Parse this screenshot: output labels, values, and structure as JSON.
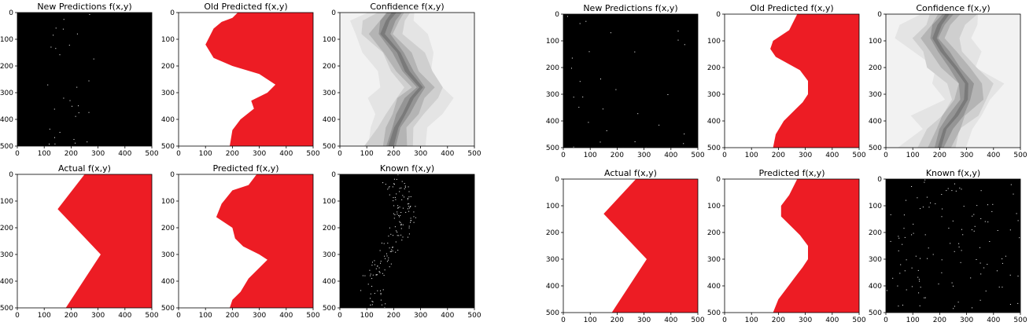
{
  "colors": {
    "red": "#ed1c24",
    "black": "#000000",
    "white": "#ffffff",
    "axis": "#000000"
  },
  "chart_data": [
    {
      "figure": "left",
      "panels": [
        {
          "type": "heatmap",
          "title": "New Predictions f(x,y)",
          "content": "sparse_black",
          "xlim": [
            0,
            500
          ],
          "ylim": [
            500,
            0
          ],
          "xticks": [
            0,
            100,
            200,
            300,
            400,
            500
          ],
          "yticks": [
            0,
            100,
            200,
            300,
            400,
            500
          ]
        },
        {
          "type": "heatmap",
          "title": "Old Predicted f(x,y)",
          "content": "boundary",
          "xlim": [
            0,
            500
          ],
          "ylim": [
            500,
            0
          ],
          "xticks": [
            0,
            100,
            200,
            300,
            400,
            500
          ],
          "yticks": [
            0,
            100,
            200,
            300,
            400,
            500
          ],
          "boundary": [
            [
              220,
              0
            ],
            [
              200,
              20
            ],
            [
              160,
              35
            ],
            [
              130,
              60
            ],
            [
              100,
              120
            ],
            [
              130,
              170
            ],
            [
              200,
              200
            ],
            [
              300,
              230
            ],
            [
              360,
              270
            ],
            [
              330,
              300
            ],
            [
              270,
              330
            ],
            [
              280,
              360
            ],
            [
              230,
              400
            ],
            [
              200,
              440
            ],
            [
              190,
              500
            ]
          ]
        },
        {
          "type": "heatmap",
          "title": "Confidence f(x,y)",
          "content": "confidence",
          "xlim": [
            0,
            500
          ],
          "ylim": [
            500,
            0
          ],
          "xticks": [
            0,
            100,
            200,
            300,
            400,
            500
          ],
          "yticks": [
            0,
            100,
            200,
            300,
            400,
            500
          ],
          "centerline": [
            [
              200,
              0
            ],
            [
              180,
              30
            ],
            [
              160,
              80
            ],
            [
              220,
              150
            ],
            [
              250,
              220
            ],
            [
              300,
              280
            ],
            [
              270,
              320
            ],
            [
              240,
              380
            ],
            [
              210,
              430
            ],
            [
              190,
              500
            ]
          ]
        },
        {
          "type": "heatmap",
          "title": "Actual f(x,y)",
          "content": "chevron",
          "xlim": [
            0,
            500
          ],
          "ylim": [
            500,
            0
          ],
          "xticks": [
            0,
            100,
            200,
            300,
            400,
            500
          ],
          "yticks": [
            0,
            100,
            200,
            300,
            400,
            500
          ],
          "boundary": [
            [
              250,
              0
            ],
            [
              150,
              130
            ],
            [
              310,
              300
            ],
            [
              180,
              500
            ]
          ]
        },
        {
          "type": "heatmap",
          "title": "Predicted f(x,y)",
          "content": "boundary",
          "xlim": [
            0,
            500
          ],
          "ylim": [
            500,
            0
          ],
          "xticks": [
            0,
            100,
            200,
            300,
            400,
            500
          ],
          "yticks": [
            0,
            100,
            200,
            300,
            400,
            500
          ],
          "boundary": [
            [
              290,
              0
            ],
            [
              260,
              40
            ],
            [
              200,
              60
            ],
            [
              160,
              110
            ],
            [
              140,
              160
            ],
            [
              200,
              200
            ],
            [
              210,
              240
            ],
            [
              240,
              270
            ],
            [
              300,
              300
            ],
            [
              330,
              320
            ],
            [
              300,
              350
            ],
            [
              260,
              390
            ],
            [
              230,
              440
            ],
            [
              200,
              470
            ],
            [
              190,
              500
            ]
          ]
        },
        {
          "type": "heatmap",
          "title": "Known f(x,y)",
          "content": "sparse_band",
          "xlim": [
            0,
            500
          ],
          "ylim": [
            500,
            0
          ],
          "xticks": [
            0,
            100,
            200,
            300,
            400,
            500
          ],
          "yticks": [
            0,
            100,
            200,
            300,
            400,
            500
          ]
        }
      ]
    },
    {
      "figure": "right",
      "panels": [
        {
          "type": "heatmap",
          "title": "New Predictions f(x,y)",
          "content": "sparse_black",
          "xlim": [
            0,
            500
          ],
          "ylim": [
            500,
            0
          ],
          "xticks": [
            0,
            100,
            200,
            300,
            400,
            500
          ],
          "yticks": [
            0,
            100,
            200,
            300,
            400,
            500
          ]
        },
        {
          "type": "heatmap",
          "title": "Old Predicted f(x,y)",
          "content": "boundary",
          "xlim": [
            0,
            500
          ],
          "ylim": [
            500,
            0
          ],
          "xticks": [
            0,
            100,
            200,
            300,
            400,
            500
          ],
          "yticks": [
            0,
            100,
            200,
            300,
            400,
            500
          ],
          "boundary": [
            [
              270,
              0
            ],
            [
              240,
              60
            ],
            [
              180,
              100
            ],
            [
              170,
              130
            ],
            [
              190,
              160
            ],
            [
              280,
              210
            ],
            [
              310,
              250
            ],
            [
              310,
              300
            ],
            [
              290,
              330
            ],
            [
              260,
              360
            ],
            [
              220,
              400
            ],
            [
              190,
              450
            ],
            [
              180,
              500
            ]
          ]
        },
        {
          "type": "heatmap",
          "title": "Confidence f(x,y)",
          "content": "confidence",
          "xlim": [
            0,
            500
          ],
          "ylim": [
            500,
            0
          ],
          "xticks": [
            0,
            100,
            200,
            300,
            400,
            500
          ],
          "yticks": [
            0,
            100,
            200,
            300,
            400,
            500
          ],
          "centerline": [
            [
              230,
              0
            ],
            [
              200,
              40
            ],
            [
              180,
              90
            ],
            [
              210,
              140
            ],
            [
              260,
              200
            ],
            [
              300,
              260
            ],
            [
              300,
              320
            ],
            [
              260,
              380
            ],
            [
              220,
              430
            ],
            [
              200,
              500
            ]
          ]
        },
        {
          "type": "heatmap",
          "title": "Actual f(x,y)",
          "content": "chevron",
          "xlim": [
            0,
            500
          ],
          "ylim": [
            500,
            0
          ],
          "xticks": [
            0,
            100,
            200,
            300,
            400,
            500
          ],
          "yticks": [
            0,
            100,
            200,
            300,
            400,
            500
          ],
          "boundary": [
            [
              270,
              0
            ],
            [
              150,
              130
            ],
            [
              310,
              300
            ],
            [
              180,
              500
            ]
          ]
        },
        {
          "type": "heatmap",
          "title": "Predicted f(x,y)",
          "content": "boundary",
          "xlim": [
            0,
            500
          ],
          "ylim": [
            500,
            0
          ],
          "xticks": [
            0,
            100,
            200,
            300,
            400,
            500
          ],
          "yticks": [
            0,
            100,
            200,
            300,
            400,
            500
          ],
          "boundary": [
            [
              270,
              0
            ],
            [
              240,
              60
            ],
            [
              210,
              100
            ],
            [
              210,
              140
            ],
            [
              240,
              170
            ],
            [
              280,
              210
            ],
            [
              310,
              250
            ],
            [
              310,
              300
            ],
            [
              290,
              330
            ],
            [
              260,
              370
            ],
            [
              230,
              410
            ],
            [
              200,
              450
            ],
            [
              180,
              500
            ]
          ]
        },
        {
          "type": "heatmap",
          "title": "Known f(x,y)",
          "content": "sparse_uniform",
          "xlim": [
            0,
            500
          ],
          "ylim": [
            500,
            0
          ],
          "xticks": [
            0,
            100,
            200,
            300,
            400,
            500
          ],
          "yticks": [
            0,
            100,
            200,
            300,
            400,
            500
          ]
        }
      ]
    }
  ]
}
